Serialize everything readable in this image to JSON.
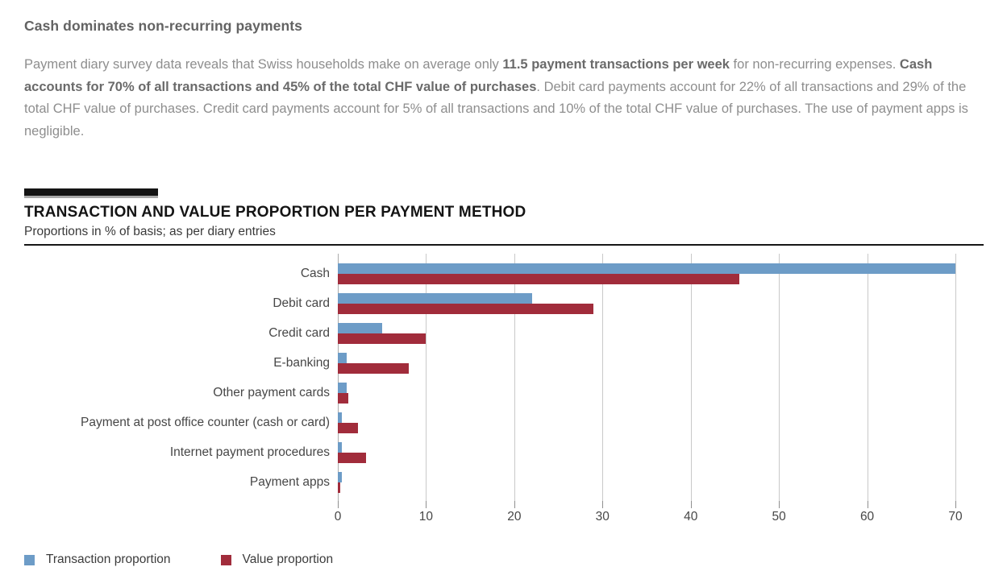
{
  "page": {
    "heading": "Cash dominates non-recurring payments",
    "paragraph_segments": [
      {
        "text": "Payment diary survey data reveals that Swiss households make on average only ",
        "bold": false
      },
      {
        "text": "11.5 payment transactions per week",
        "bold": true
      },
      {
        "text": " for non-recurring expenses. ",
        "bold": false
      },
      {
        "text": "Cash accounts for 70% of all transactions and 45% of the total CHF value of purchases",
        "bold": true
      },
      {
        "text": ". Debit card payments account for 22% of all transactions and 29% of the total CHF value of purchases. Credit card payments account for 5% of all transactions and 10% of the total CHF value of purchases. The use of payment apps is negligible.",
        "bold": false
      }
    ]
  },
  "chart": {
    "title": "TRANSACTION AND VALUE PROPORTION PER PAYMENT METHOD",
    "subtitle": "Proportions in % of basis; as per diary entries"
  },
  "chart_data": {
    "type": "bar",
    "orientation": "horizontal",
    "title": "TRANSACTION AND VALUE PROPORTION PER PAYMENT METHOD",
    "subtitle": "Proportions in % of basis; as per diary entries",
    "categories": [
      "Cash",
      "Debit card",
      "Credit card",
      "E-banking",
      "Other payment cards",
      "Payment at post office counter (cash or card)",
      "Internet payment procedures",
      "Payment apps"
    ],
    "series": [
      {
        "name": "Transaction proportion",
        "color": "#6d9cc7",
        "values": [
          70,
          22,
          5,
          1,
          1,
          0.5,
          0.5,
          0.5
        ]
      },
      {
        "name": "Value proportion",
        "color": "#a12c3b",
        "values": [
          45.5,
          29,
          10,
          8,
          1.2,
          2.3,
          3.2,
          0.3
        ]
      }
    ],
    "xlabel": "",
    "ylabel": "",
    "xlim": [
      0,
      70
    ],
    "x_ticks": [
      0,
      10,
      20,
      30,
      40,
      50,
      60,
      70
    ],
    "grid": true,
    "legend_position": "bottom"
  }
}
